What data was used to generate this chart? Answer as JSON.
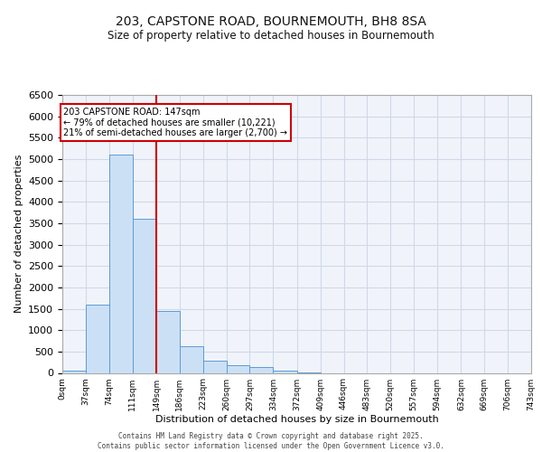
{
  "title1": "203, CAPSTONE ROAD, BOURNEMOUTH, BH8 8SA",
  "title2": "Size of property relative to detached houses in Bournemouth",
  "xlabel": "Distribution of detached houses by size in Bournemouth",
  "ylabel": "Number of detached properties",
  "footer1": "Contains HM Land Registry data © Crown copyright and database right 2025.",
  "footer2": "Contains public sector information licensed under the Open Government Licence v3.0.",
  "bar_edges": [
    0,
    37,
    74,
    111,
    149,
    186,
    223,
    260,
    297,
    334,
    372,
    409,
    446,
    483,
    520,
    557,
    594,
    632,
    669,
    706,
    743
  ],
  "bar_heights": [
    50,
    1600,
    5100,
    3600,
    1450,
    620,
    290,
    190,
    130,
    50,
    20,
    0,
    0,
    0,
    0,
    0,
    0,
    0,
    0,
    0
  ],
  "bar_color": "#cce0f5",
  "bar_edge_color": "#5b9bd5",
  "vertical_line_x": 149,
  "vertical_line_color": "#cc0000",
  "ylim": [
    0,
    6500
  ],
  "yticks": [
    0,
    500,
    1000,
    1500,
    2000,
    2500,
    3000,
    3500,
    4000,
    4500,
    5000,
    5500,
    6000,
    6500
  ],
  "annotation_text": "203 CAPSTONE ROAD: 147sqm\n← 79% of detached houses are smaller (10,221)\n21% of semi-detached houses are larger (2,700) →",
  "annotation_box_color": "#ffffff",
  "annotation_border_color": "#cc0000",
  "grid_color": "#d0d8e8",
  "background_color": "#f0f4fa",
  "tick_labels": [
    "0sqm",
    "37sqm",
    "74sqm",
    "111sqm",
    "149sqm",
    "186sqm",
    "223sqm",
    "260sqm",
    "297sqm",
    "334sqm",
    "372sqm",
    "409sqm",
    "446sqm",
    "483sqm",
    "520sqm",
    "557sqm",
    "594sqm",
    "632sqm",
    "669sqm",
    "706sqm",
    "743sqm"
  ]
}
